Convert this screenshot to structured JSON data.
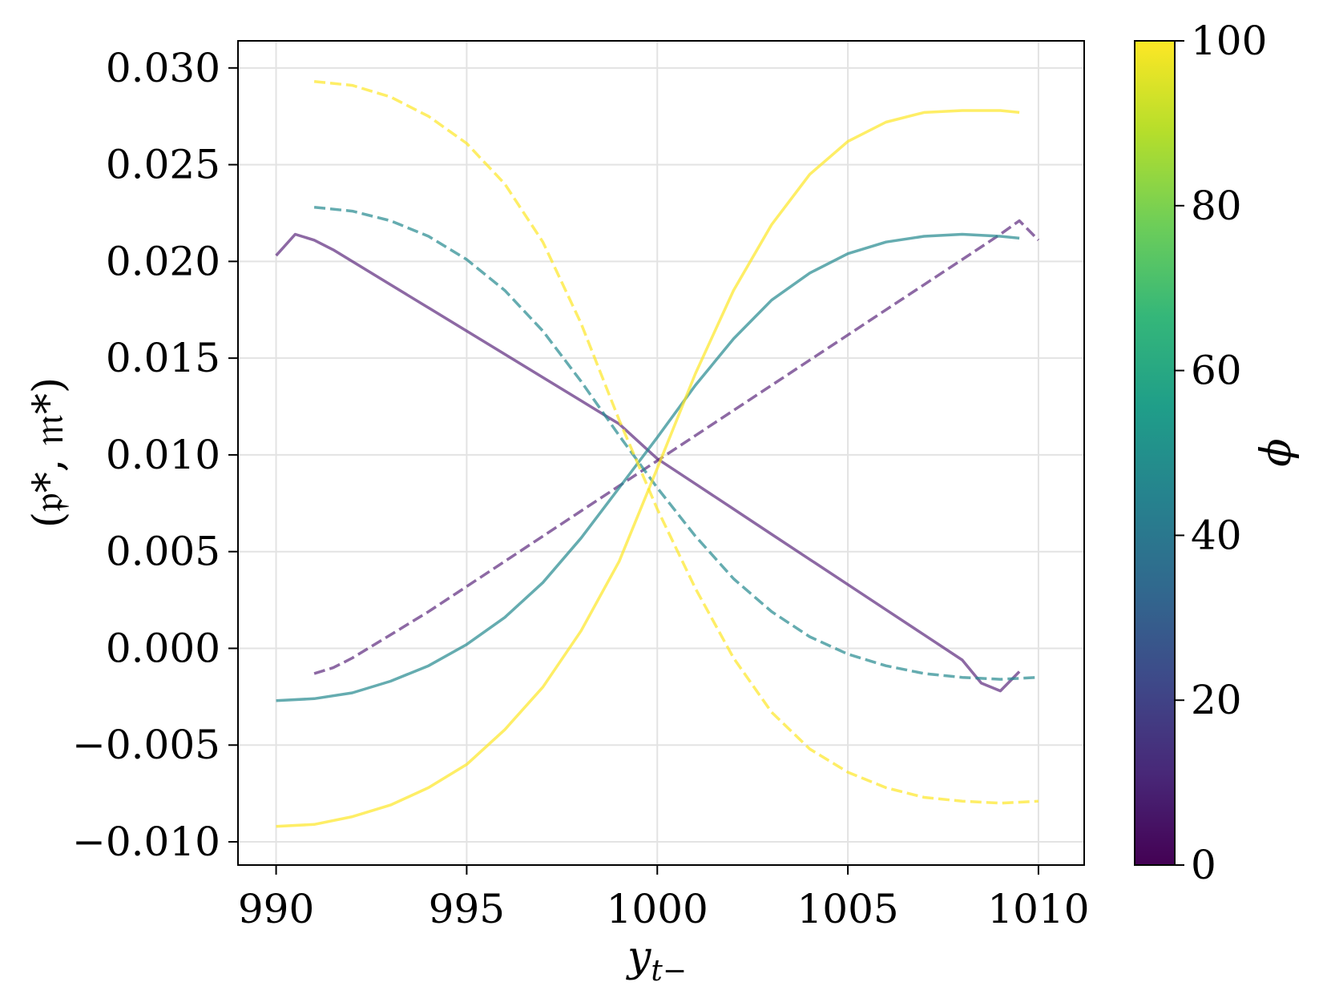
{
  "chart_data": {
    "type": "line",
    "title": "",
    "xlabel": {
      "main": "y",
      "subscript": "t−"
    },
    "ylabel": "(𝔭*, 𝔪*)",
    "xlim": [
      989,
      1011.2
    ],
    "ylim": [
      -0.0112,
      0.0314
    ],
    "xticks": [
      990,
      995,
      1000,
      1005,
      1010
    ],
    "yticks": [
      -0.01,
      -0.005,
      0.0,
      0.005,
      0.01,
      0.015,
      0.02,
      0.025,
      0.03
    ],
    "xtick_labels": [
      "990",
      "995",
      "1000",
      "1005",
      "1010"
    ],
    "ytick_labels": [
      "−0.010",
      "−0.005",
      "0.000",
      "0.005",
      "0.010",
      "0.015",
      "0.020",
      "0.025",
      "0.030"
    ],
    "grid": true,
    "colorbar": {
      "label": "ϕ",
      "range": [
        0,
        100
      ],
      "ticks": [
        0,
        20,
        40,
        60,
        80,
        100
      ],
      "tick_labels": [
        "0",
        "20",
        "40",
        "60",
        "80",
        "100"
      ],
      "colormap": [
        "#440154",
        "#482878",
        "#3e4989",
        "#31688e",
        "#26828e",
        "#1f9e89",
        "#35b779",
        "#6ece58",
        "#b5de2b",
        "#fde725"
      ]
    },
    "series": [
      {
        "phi": 10,
        "color": "#5d2a7d",
        "style": "solid",
        "x": [
          990,
          990.5,
          991,
          991.5,
          992,
          993,
          994,
          995,
          996,
          997,
          998,
          999,
          1000,
          1001,
          1002,
          1003,
          1004,
          1005,
          1006,
          1007,
          1008,
          1008.5,
          1009,
          1009.5
        ],
        "y": [
          0.0203,
          0.0214,
          0.0211,
          0.0206,
          0.02,
          0.0188,
          0.0176,
          0.0164,
          0.0152,
          0.014,
          0.0128,
          0.0116,
          0.0098,
          0.0085,
          0.0072,
          0.0059,
          0.0046,
          0.0033,
          0.002,
          0.0007,
          -0.0006,
          -0.0018,
          -0.0022,
          -0.0012
        ]
      },
      {
        "phi": 10,
        "color": "#5d2a7d",
        "style": "dashed",
        "x": [
          991,
          991.5,
          992,
          993,
          994,
          995,
          996,
          997,
          998,
          999,
          1000,
          1001,
          1002,
          1003,
          1004,
          1005,
          1006,
          1007,
          1008,
          1009,
          1009.5,
          1010
        ],
        "y": [
          -0.0013,
          -0.001,
          -0.0005,
          0.0007,
          0.0019,
          0.0032,
          0.0045,
          0.0058,
          0.0071,
          0.0084,
          0.0097,
          0.011,
          0.0123,
          0.0136,
          0.0149,
          0.0162,
          0.0175,
          0.0188,
          0.0201,
          0.0214,
          0.0221,
          0.0211
        ]
      },
      {
        "phi": 50,
        "color": "#23898e",
        "style": "solid",
        "x": [
          990,
          991,
          992,
          993,
          994,
          995,
          996,
          997,
          998,
          999,
          1000,
          1001,
          1002,
          1003,
          1004,
          1005,
          1006,
          1007,
          1008,
          1009,
          1009.5
        ],
        "y": [
          -0.0027,
          -0.0026,
          -0.0023,
          -0.0017,
          -0.0009,
          0.0002,
          0.0016,
          0.0034,
          0.0057,
          0.0083,
          0.0109,
          0.0136,
          0.016,
          0.018,
          0.0194,
          0.0204,
          0.021,
          0.0213,
          0.0214,
          0.0213,
          0.0212
        ]
      },
      {
        "phi": 50,
        "color": "#23898e",
        "style": "dashed",
        "x": [
          991,
          992,
          993,
          994,
          995,
          996,
          997,
          998,
          999,
          1000,
          1001,
          1002,
          1003,
          1004,
          1005,
          1006,
          1007,
          1008,
          1009,
          1010
        ],
        "y": [
          0.0228,
          0.0226,
          0.0221,
          0.0213,
          0.0201,
          0.0185,
          0.0164,
          0.0138,
          0.011,
          0.0083,
          0.0058,
          0.0036,
          0.0019,
          0.0006,
          -0.0003,
          -0.0009,
          -0.0013,
          -0.0015,
          -0.0016,
          -0.0015
        ]
      },
      {
        "phi": 100,
        "color": "#fde725",
        "style": "solid",
        "x": [
          990,
          991,
          992,
          993,
          994,
          995,
          996,
          997,
          998,
          999,
          1000,
          1001,
          1002,
          1003,
          1004,
          1005,
          1006,
          1007,
          1008,
          1009,
          1009.5
        ],
        "y": [
          -0.0092,
          -0.0091,
          -0.0087,
          -0.0081,
          -0.0072,
          -0.006,
          -0.0042,
          -0.002,
          0.0009,
          0.0045,
          0.0093,
          0.0142,
          0.0185,
          0.0219,
          0.0245,
          0.0262,
          0.0272,
          0.0277,
          0.0278,
          0.0278,
          0.0277
        ]
      },
      {
        "phi": 100,
        "color": "#fde725",
        "style": "dashed",
        "x": [
          991,
          992,
          993,
          994,
          995,
          996,
          997,
          998,
          999,
          1000,
          1001,
          1002,
          1003,
          1004,
          1005,
          1006,
          1007,
          1008,
          1009,
          1010
        ],
        "y": [
          0.0293,
          0.0291,
          0.0285,
          0.0275,
          0.0261,
          0.024,
          0.021,
          0.0168,
          0.0118,
          0.0072,
          0.0031,
          -0.0005,
          -0.0033,
          -0.0052,
          -0.0064,
          -0.0072,
          -0.0077,
          -0.0079,
          -0.008,
          -0.0079
        ]
      }
    ]
  }
}
